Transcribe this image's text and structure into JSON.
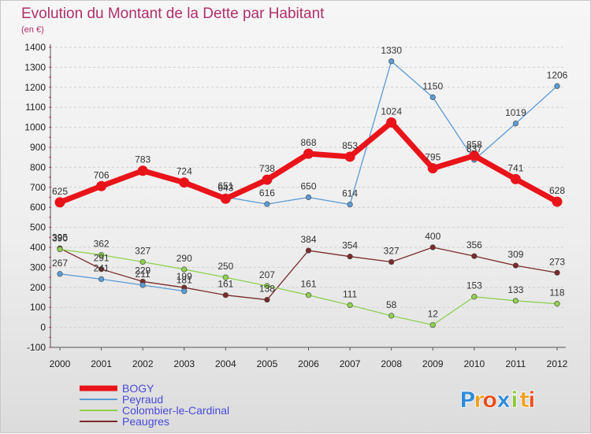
{
  "chart_data": {
    "type": "line",
    "title": "Evolution du Montant de la Dette par Habitant",
    "subtitle": "(en €)",
    "xlabel": "",
    "ylabel": "",
    "ylim": [
      -100,
      1400
    ],
    "yticks": [
      -100,
      0,
      100,
      200,
      300,
      400,
      500,
      600,
      700,
      800,
      900,
      1000,
      1100,
      1200,
      1300,
      1400
    ],
    "categories": [
      "2000",
      "2001",
      "2002",
      "2003",
      "2004",
      "2005",
      "2006",
      "2007",
      "2008",
      "2009",
      "2010",
      "2011",
      "2012"
    ],
    "grid": "horizontal dashed",
    "legend_position": "bottom-left",
    "series": [
      {
        "name": "BOGY",
        "color": "#e8141a",
        "emphasis": true,
        "values": [
          625,
          706,
          783,
          724,
          643,
          738,
          868,
          853,
          1024,
          795,
          858,
          741,
          628
        ],
        "labels": [
          "625",
          "706",
          "783",
          "724",
          "643",
          "738",
          "868",
          "853",
          "1024",
          "795",
          "858",
          "741",
          "628"
        ]
      },
      {
        "name": "Peyraud",
        "color": "#5b9bd5",
        "segments": [
          [
            0,
            3
          ],
          [
            4,
            7
          ],
          [
            7,
            12
          ]
        ],
        "values": [
          267,
          241,
          211,
          181,
          651,
          616,
          650,
          614,
          1330,
          1150,
          837,
          1019,
          1206
        ],
        "labels": [
          "267",
          "241",
          "211",
          "181",
          "651",
          "616",
          "650",
          "614",
          "1330",
          "1150",
          "837",
          "1019",
          "1206"
        ]
      },
      {
        "name": "Colombier-le-Cardinal",
        "color": "#8fd14f",
        "values": [
          390,
          362,
          327,
          290,
          250,
          207,
          161,
          111,
          58,
          12,
          153,
          133,
          118
        ],
        "labels": [
          "390",
          "362",
          "327",
          "290",
          "250",
          "207",
          "161",
          "111",
          "58",
          "12",
          "153",
          "133",
          "118"
        ]
      },
      {
        "name": "Peaugres",
        "color": "#7b2b2b",
        "values": [
          395,
          291,
          229,
          199,
          161,
          138,
          384,
          354,
          327,
          400,
          356,
          309,
          273
        ],
        "labels": [
          "395",
          "291",
          "229",
          "199",
          "161",
          "138",
          "384",
          "354",
          "327",
          "400",
          "356",
          "309",
          "273"
        ]
      }
    ]
  },
  "logo": {
    "text": "Proxiti",
    "letters": [
      {
        "ch": "P",
        "color": "#2e8bd8"
      },
      {
        "ch": "r",
        "color": "#f0a020"
      },
      {
        "ch": "o",
        "color": "#e85020"
      },
      {
        "ch": "x",
        "color": "#2e8bd8"
      },
      {
        "ch": "i",
        "color": "#8cc63e"
      },
      {
        "ch": "t",
        "color": "#f0a020"
      },
      {
        "ch": "i",
        "color": "#e85020"
      }
    ]
  }
}
